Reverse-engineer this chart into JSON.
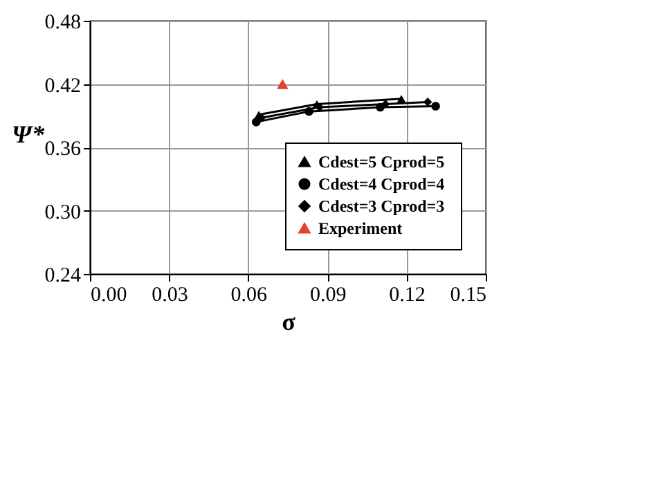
{
  "chart_data": {
    "type": "line",
    "xlabel": "σ",
    "ylabel": "Ψ*",
    "xlim": [
      0,
      0.15
    ],
    "xticks": [
      {
        "value": 0,
        "label": "0.00"
      },
      0.03,
      0.06,
      0.09,
      0.12,
      0.15
    ],
    "ylim": [
      0.24,
      0.48
    ],
    "yticks": [
      0.24,
      {
        "value": 0.3,
        "label": "0.30"
      },
      0.36,
      0.42,
      0.48
    ],
    "grid": true,
    "legend": "bottom right",
    "line_style": "solid",
    "series": [
      {
        "name": "Cdest=5  Cprod=5",
        "color": "#000000",
        "marker": "triangle",
        "x": [
          0.064,
          0.086,
          0.118
        ],
        "values": [
          0.391,
          0.401,
          0.406
        ]
      },
      {
        "name": "Cdest=4  Cprod=4",
        "color": "#000000",
        "marker": "circle",
        "x": [
          0.063,
          0.083,
          0.11,
          0.131
        ],
        "values": [
          0.384,
          0.394,
          0.398,
          0.399
        ]
      },
      {
        "name": "Cdest=3  Cprod=3",
        "color": "#000000",
        "marker": "diamond",
        "x": [
          0.065,
          0.087,
          0.112,
          0.128
        ],
        "values": [
          0.388,
          0.398,
          0.401,
          0.403
        ]
      },
      {
        "name": "Experiment",
        "type": "scatter",
        "color": "#e8402a",
        "marker": "triangle",
        "x": [
          0.073
        ],
        "values": [
          0.42
        ]
      }
    ]
  }
}
